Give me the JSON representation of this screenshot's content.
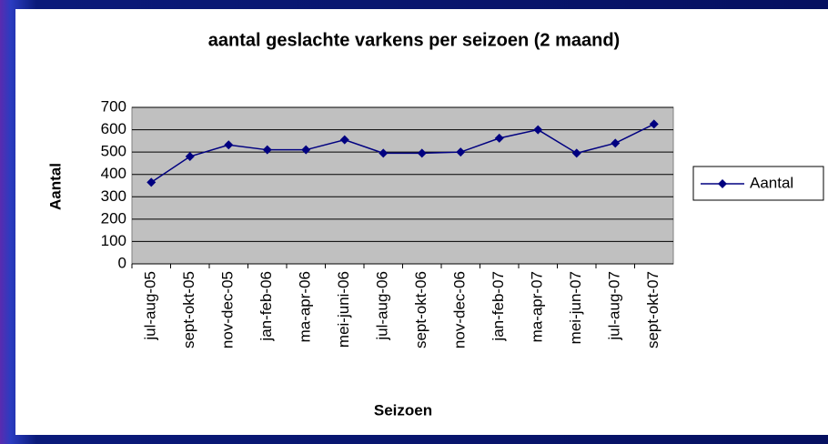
{
  "chart_data": {
    "type": "line",
    "title": "aantal geslachte varkens per seizoen (2 maand)",
    "x_label": "Seizoen",
    "y_label": "Aantal",
    "categories": [
      "jul-aug-05",
      "sept-okt-05",
      "nov-dec-05",
      "jan-feb-06",
      "ma-apr-06",
      "mei-juni-06",
      "jul-aug-06",
      "sept-okt-06",
      "nov-dec-06",
      "jan-feb-07",
      "ma-apr-07",
      "mei-jun-07",
      "jul-aug-07",
      "sept-okt-07"
    ],
    "series": [
      {
        "name": "Aantal",
        "color": "#000080",
        "values": [
          365,
          480,
          532,
          510,
          510,
          555,
          495,
          495,
          500,
          562,
          600,
          495,
          540,
          625
        ]
      }
    ],
    "ylim": [
      0,
      700
    ],
    "yticks": [
      0,
      100,
      200,
      300,
      400,
      500,
      600,
      700
    ],
    "grid": true,
    "legend": "right"
  }
}
